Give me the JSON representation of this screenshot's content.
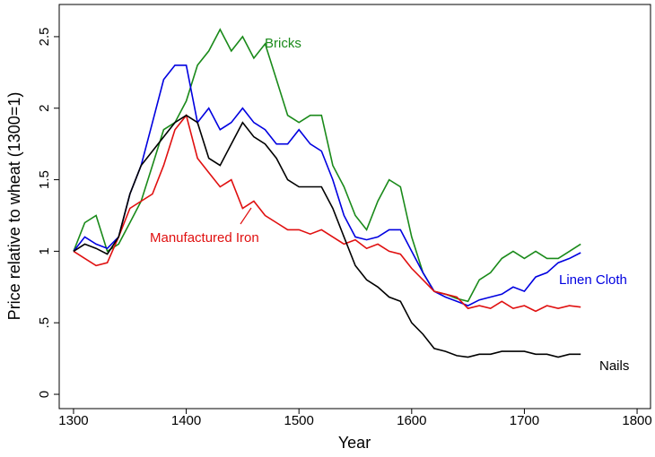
{
  "chart_data": {
    "type": "line",
    "xlabel": "Year",
    "ylabel": "Price relative to wheat (1300=1)",
    "x": [
      1300,
      1310,
      1320,
      1330,
      1340,
      1350,
      1360,
      1370,
      1380,
      1390,
      1400,
      1410,
      1420,
      1430,
      1440,
      1450,
      1460,
      1470,
      1480,
      1490,
      1500,
      1510,
      1520,
      1530,
      1540,
      1550,
      1560,
      1570,
      1580,
      1590,
      1600,
      1610,
      1620,
      1630,
      1640,
      1650,
      1660,
      1670,
      1680,
      1690,
      1700,
      1710,
      1720,
      1730,
      1740,
      1750
    ],
    "series": [
      {
        "name": "Bricks",
        "color": "#1a8a1a",
        "values": [
          1.0,
          1.2,
          1.25,
          1.0,
          1.05,
          1.2,
          1.35,
          1.6,
          1.85,
          1.9,
          2.05,
          2.3,
          2.4,
          2.55,
          2.4,
          2.5,
          2.35,
          2.45,
          2.2,
          1.95,
          1.9,
          1.95,
          1.95,
          1.6,
          1.45,
          1.25,
          1.15,
          1.35,
          1.5,
          1.45,
          1.1,
          0.85,
          0.72,
          0.7,
          0.67,
          0.65,
          0.8,
          0.85,
          0.95,
          1.0,
          0.95,
          1.0,
          0.95,
          0.95,
          1.0,
          1.05
        ]
      },
      {
        "name": "Linen Cloth",
        "color": "#0000e0",
        "values": [
          1.0,
          1.1,
          1.05,
          1.02,
          1.1,
          1.4,
          1.6,
          1.9,
          2.2,
          2.3,
          2.3,
          1.9,
          2.0,
          1.85,
          1.9,
          2.0,
          1.9,
          1.85,
          1.75,
          1.75,
          1.85,
          1.75,
          1.7,
          1.5,
          1.25,
          1.1,
          1.08,
          1.1,
          1.15,
          1.15,
          1.0,
          0.85,
          0.72,
          0.68,
          0.65,
          0.62,
          0.66,
          0.68,
          0.7,
          0.75,
          0.72,
          0.82,
          0.85,
          0.92,
          0.95,
          0.99
        ]
      },
      {
        "name": "Manufactured Iron",
        "color": "#e01010",
        "values": [
          1.0,
          0.95,
          0.9,
          0.92,
          1.1,
          1.3,
          1.35,
          1.4,
          1.6,
          1.85,
          1.95,
          1.65,
          1.55,
          1.45,
          1.5,
          1.3,
          1.35,
          1.25,
          1.2,
          1.15,
          1.15,
          1.12,
          1.15,
          1.1,
          1.05,
          1.08,
          1.02,
          1.05,
          1.0,
          0.98,
          0.88,
          0.8,
          0.72,
          0.7,
          0.68,
          0.6,
          0.62,
          0.6,
          0.65,
          0.6,
          0.62,
          0.58,
          0.62,
          0.6,
          0.62,
          0.61
        ]
      },
      {
        "name": "Nails",
        "color": "#000000",
        "values": [
          1.0,
          1.05,
          1.02,
          0.98,
          1.1,
          1.4,
          1.6,
          1.7,
          1.8,
          1.9,
          1.95,
          1.9,
          1.65,
          1.6,
          1.75,
          1.9,
          1.8,
          1.75,
          1.65,
          1.5,
          1.45,
          1.45,
          1.45,
          1.3,
          1.1,
          0.9,
          0.8,
          0.75,
          0.68,
          0.65,
          0.5,
          0.42,
          0.32,
          0.3,
          0.27,
          0.26,
          0.28,
          0.28,
          0.3,
          0.3,
          0.3,
          0.28,
          0.28,
          0.26,
          0.28,
          0.28
        ]
      }
    ],
    "xlim": [
      1287.3,
      1811.9
    ],
    "ylim": [
      -0.1,
      2.725
    ],
    "xticks": [
      1300,
      1400,
      1500,
      1600,
      1700,
      1800
    ],
    "yticks": [
      0,
      {
        "value": 0.5,
        "label": ".5"
      },
      1,
      1.5,
      2,
      2.5
    ]
  }
}
